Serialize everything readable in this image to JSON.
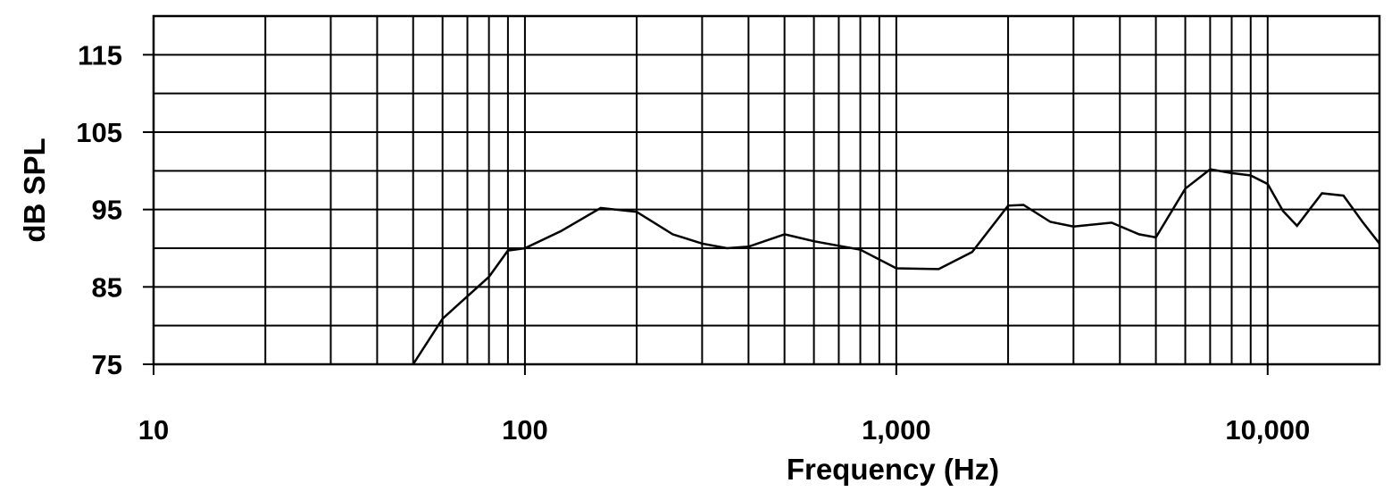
{
  "chart_data": {
    "type": "line",
    "title": "",
    "xlabel": "Frequency (Hz)",
    "ylabel": "dB SPL",
    "xscale": "log",
    "xlim": [
      10,
      20000
    ],
    "ylim": [
      75,
      120
    ],
    "grid": true,
    "x_ticks": [
      10,
      100,
      1000,
      10000
    ],
    "x_tick_labels": [
      "10",
      "100",
      "1,000",
      "10,000"
    ],
    "y_ticks": [
      75,
      85,
      95,
      105,
      115
    ],
    "y_tick_labels": [
      "75",
      "85",
      "95",
      "105",
      "115"
    ],
    "line_color": "#000000",
    "series": [
      {
        "x": [
          50,
          60,
          80,
          90,
          100,
          125,
          160,
          200,
          250,
          300,
          350,
          400,
          500,
          600,
          800,
          1000,
          1300,
          1600,
          2000,
          2200,
          2600,
          3000,
          3800,
          4500,
          5000,
          6000,
          7000,
          8000,
          9000,
          10000,
          11000,
          12000,
          14000,
          16000,
          18000,
          20000
        ],
        "y": [
          75,
          80.9,
          86.3,
          89.7,
          90,
          92.2,
          95.2,
          94.7,
          91.8,
          90.6,
          90,
          90.2,
          91.8,
          90.9,
          89.8,
          87.4,
          87.3,
          89.5,
          95.5,
          95.6,
          93.4,
          92.8,
          93.3,
          91.8,
          91.4,
          97.7,
          100.2,
          99.7,
          99.4,
          98.3,
          94.8,
          92.9,
          97.1,
          96.8,
          93.4,
          90.6
        ]
      }
    ]
  }
}
